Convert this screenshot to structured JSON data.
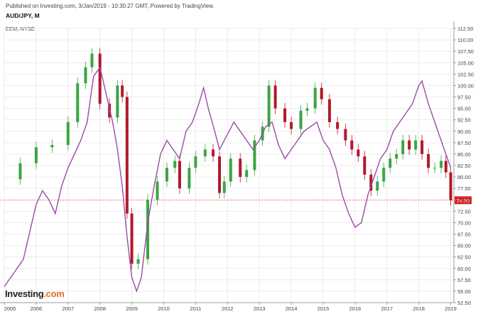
{
  "header": {
    "published": "Published on Investing.com, 3/Jan/2019 - 10:30:27 GMT, Powered by TradingView.",
    "pair_title": "AUD/JPY, M",
    "overlay_label": "EEM, NYSE"
  },
  "logo": {
    "text": "Investing",
    "suffix": ".com"
  },
  "colors": {
    "up_candle": "#3aa543",
    "down_candle": "#b2182b",
    "overlay_line": "#9c4aa8",
    "price_line": "#e85050",
    "price_badge": "#e02020",
    "grid": "#ececec"
  },
  "chart_data": {
    "type": "line",
    "title": "AUD/JPY, M",
    "xlabel": "",
    "ylabel": "",
    "ylim": [
      52.5,
      112.5
    ],
    "xlim": [
      2005.0,
      2019.1
    ],
    "yticks": [
      52.5,
      55.0,
      57.5,
      60.0,
      62.5,
      65.0,
      67.5,
      70.0,
      72.5,
      75.0,
      77.5,
      80.0,
      82.5,
      85.0,
      87.5,
      90.0,
      92.5,
      95.0,
      97.5,
      100.0,
      102.5,
      105.0,
      107.5,
      110.0,
      112.5
    ],
    "ytick_labels": [
      "52.50",
      "55.00",
      "57.50",
      "60.00",
      "62.50",
      "65.00",
      "67.50",
      "70.00",
      "72.50",
      "75.00",
      "77.50",
      "80.00",
      "82.50",
      "85.00",
      "87.50",
      "90.00",
      "92.50",
      "95.00",
      "97.50",
      "100.00",
      "102.50",
      "105.00",
      "107.50",
      "110.00",
      "112.50"
    ],
    "xticks": [
      2005,
      2006,
      2007,
      2008,
      2009,
      2010,
      2011,
      2012,
      2013,
      2014,
      2015,
      2016,
      2017,
      2018,
      2019
    ],
    "xtick_labels": [
      "2005",
      "2006",
      "2007",
      "2008",
      "2009",
      "2010",
      "2011",
      "2012",
      "2013",
      "2014",
      "2015",
      "2016",
      "2017",
      "2018",
      "2019"
    ],
    "last_price": 74.9,
    "last_price_label": "74.90",
    "grid": true,
    "series": [
      {
        "name": "AUD/JPY",
        "style": "candlestick",
        "x": [
          2005.0,
          2005.5,
          2006.0,
          2006.5,
          2007.0,
          2007.3,
          2007.55,
          2007.75,
          2008.0,
          2008.3,
          2008.55,
          2008.7,
          2008.85,
          2009.0,
          2009.2,
          2009.5,
          2009.8,
          2010.1,
          2010.35,
          2010.5,
          2010.8,
          2011.0,
          2011.3,
          2011.55,
          2011.75,
          2011.9,
          2012.1,
          2012.4,
          2012.6,
          2012.85,
          2013.1,
          2013.3,
          2013.5,
          2013.8,
          2014.0,
          2014.3,
          2014.5,
          2014.75,
          2014.95,
          2015.2,
          2015.45,
          2015.7,
          2015.9,
          2016.1,
          2016.3,
          2016.5,
          2016.7,
          2016.9,
          2017.1,
          2017.3,
          2017.5,
          2017.7,
          2017.9,
          2018.1,
          2018.3,
          2018.5,
          2018.7,
          2018.85,
          2019.0
        ],
        "values": [
          79.5,
          83.0,
          86.5,
          87.0,
          92.0,
          100.5,
          104.0,
          107.0,
          96.0,
          93.0,
          100.0,
          97.5,
          72.0,
          61.0,
          62.0,
          75.0,
          79.0,
          82.0,
          83.5,
          77.5,
          82.0,
          84.5,
          86.0,
          84.5,
          76.5,
          79.0,
          84.0,
          80.0,
          81.5,
          88.0,
          91.0,
          100.0,
          95.0,
          92.0,
          90.5,
          94.5,
          95.0,
          99.5,
          97.0,
          92.0,
          90.5,
          88.0,
          86.0,
          84.5,
          80.5,
          77.0,
          79.0,
          82.0,
          84.0,
          85.0,
          88.0,
          86.0,
          88.0,
          85.0,
          82.0,
          82.0,
          83.5,
          81.0,
          74.9
        ]
      },
      {
        "name": "EEM",
        "style": "line",
        "x": [
          2005.0,
          2005.2,
          2005.4,
          2005.6,
          2005.8,
          2006.0,
          2006.2,
          2006.4,
          2006.6,
          2006.8,
          2007.0,
          2007.2,
          2007.4,
          2007.6,
          2007.8,
          2008.0,
          2008.2,
          2008.4,
          2008.55,
          2008.7,
          2008.85,
          2009.0,
          2009.15,
          2009.3,
          2009.5,
          2009.7,
          2009.9,
          2010.1,
          2010.3,
          2010.5,
          2010.7,
          2010.9,
          2011.1,
          2011.25,
          2011.4,
          2011.6,
          2011.75,
          2011.9,
          2012.05,
          2012.2,
          2012.4,
          2012.6,
          2012.8,
          2013.0,
          2013.2,
          2013.4,
          2013.6,
          2013.8,
          2014.0,
          2014.2,
          2014.4,
          2014.6,
          2014.8,
          2015.0,
          2015.2,
          2015.4,
          2015.6,
          2015.8,
          2016.0,
          2016.2,
          2016.4,
          2016.6,
          2016.8,
          2017.0,
          2017.2,
          2017.4,
          2017.6,
          2017.8,
          2018.0,
          2018.1,
          2018.3,
          2018.5,
          2018.7,
          2018.9,
          2019.0
        ],
        "values": [
          56.0,
          58.0,
          60.0,
          62.0,
          68.0,
          74.0,
          77.0,
          75.0,
          72.0,
          78.0,
          82.0,
          85.0,
          88.0,
          92.0,
          102.0,
          104.0,
          98.0,
          92.0,
          86.0,
          78.0,
          67.0,
          58.0,
          55.0,
          58.0,
          70.0,
          78.0,
          85.0,
          88.0,
          86.0,
          84.0,
          90.0,
          92.0,
          96.0,
          99.5,
          95.0,
          90.0,
          86.0,
          88.0,
          90.0,
          92.0,
          90.0,
          88.0,
          86.0,
          88.0,
          91.0,
          92.0,
          87.0,
          84.0,
          86.0,
          88.0,
          90.0,
          91.0,
          92.0,
          88.0,
          86.0,
          82.0,
          76.0,
          72.0,
          69.0,
          70.0,
          76.0,
          80.0,
          84.0,
          86.0,
          90.0,
          92.0,
          94.0,
          96.0,
          100.0,
          101.0,
          96.0,
          92.0,
          88.0,
          84.0,
          82.0
        ]
      }
    ]
  }
}
